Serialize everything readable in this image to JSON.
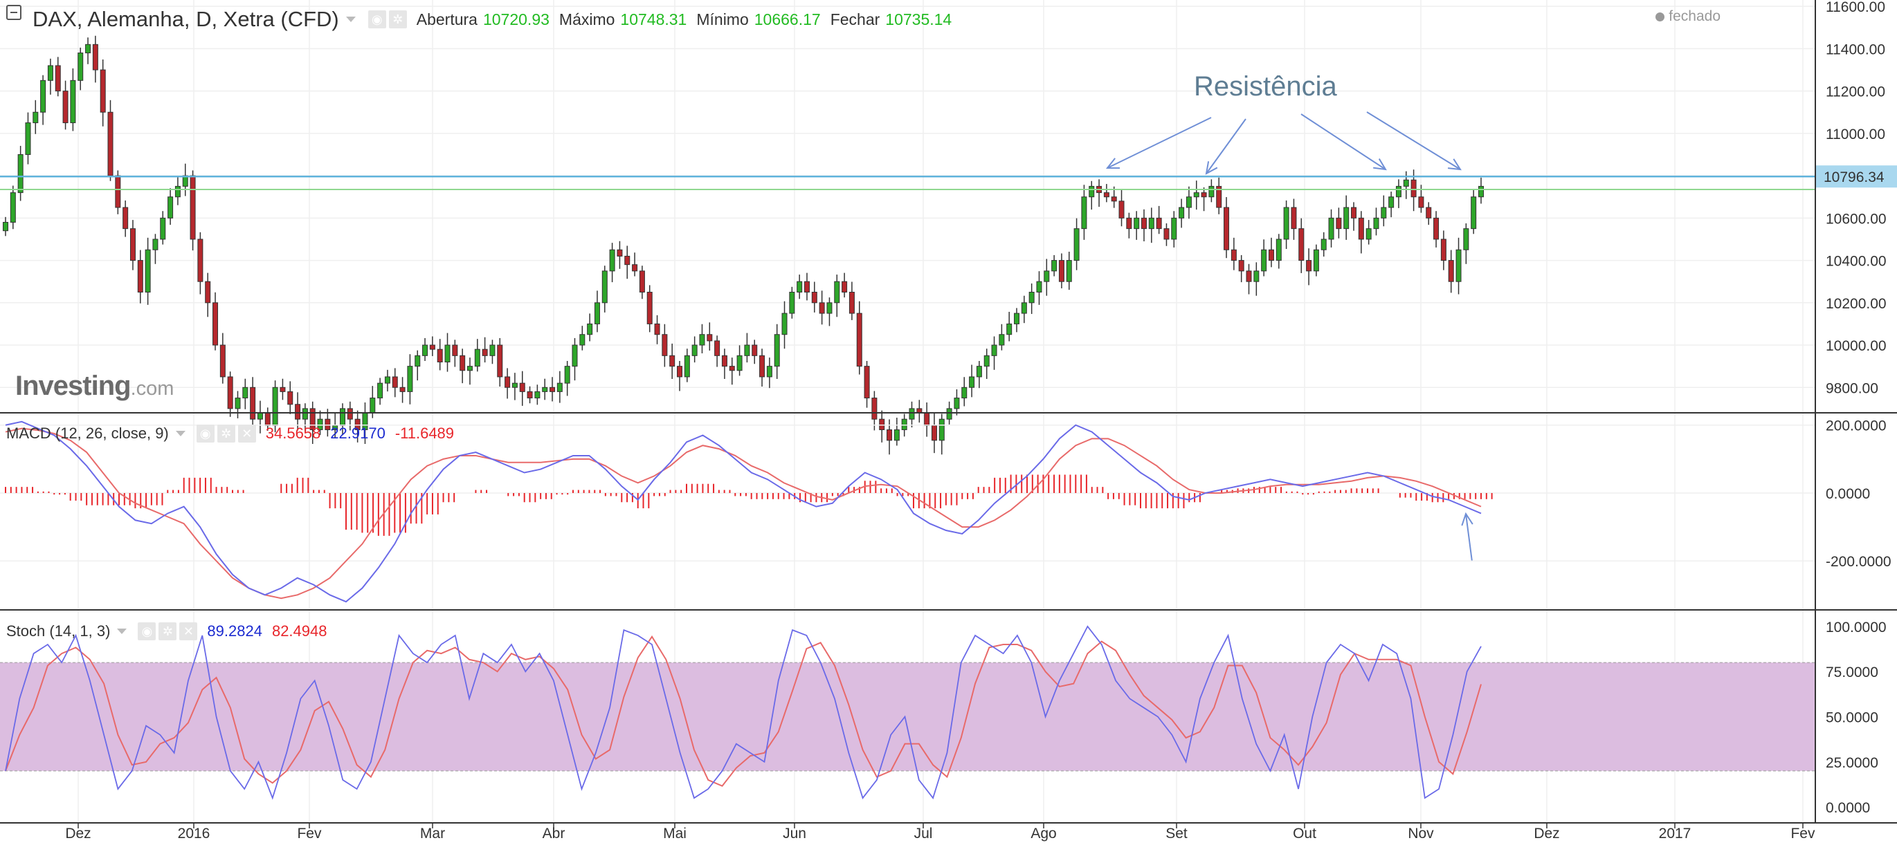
{
  "header": {
    "title": "DAX, Alemanha, D, Xetra (CFD)",
    "ohlc": [
      {
        "label": "Abertura",
        "value": "10720.93"
      },
      {
        "label": "Máximo",
        "value": "10748.31"
      },
      {
        "label": "Mínimo",
        "value": "10666.17"
      },
      {
        "label": "Fechar",
        "value": "10735.14"
      }
    ],
    "status": "fechado"
  },
  "logo": {
    "name": "Investing",
    "suffix": ".com"
  },
  "annotation": "Resistência",
  "macd": {
    "title": "MACD (12, 26, close, 9)",
    "values": [
      {
        "text": "34.5658",
        "color": "#e8262b"
      },
      {
        "text": "22.9170",
        "color": "#1c2bd0"
      },
      {
        "text": "-11.6489",
        "color": "#e8262b"
      }
    ]
  },
  "stoch": {
    "title": "Stoch (14, 1, 3)",
    "values": [
      {
        "text": "89.2824",
        "color": "#1c2bd0"
      },
      {
        "text": "82.4948",
        "color": "#e8262b"
      }
    ]
  },
  "colors": {
    "up": "#2ea62a",
    "down": "#b5282d",
    "macd_line": "#6a6ae8",
    "signal_line": "#e86a6a",
    "histogram": "#e8262b",
    "stoch_k": "#6a6ae8",
    "stoch_d": "#e86a6a",
    "stoch_band": "#dcbde0",
    "resistance_line": "#5fb3dc",
    "close_line": "#8fd88f",
    "annotation": "#5e7d93"
  },
  "chart_data": [
    {
      "type": "candlestick",
      "title": "DAX, Alemanha, D, Xetra (CFD)",
      "x_ticks": [
        "Dez",
        "2016",
        "Fev",
        "Mar",
        "Abr",
        "Mai",
        "Jun",
        "Jul",
        "Ago",
        "Set",
        "Out",
        "Nov",
        "Dez",
        "2017",
        "Fev"
      ],
      "y_ticks": [
        "11600.00",
        "11400.00",
        "11200.00",
        "11000.00",
        "10800.00",
        "10600.00",
        "10400.00",
        "10200.00",
        "10000.00",
        "9800.00"
      ],
      "ylim": [
        9680,
        11630
      ],
      "last_price_label": "10796.34",
      "resistance_level": 10796.34,
      "close_level": 10735.14,
      "closes": [
        10580,
        10720,
        10900,
        11050,
        11100,
        11250,
        11320,
        11200,
        11050,
        11250,
        11380,
        11420,
        11300,
        11100,
        10800,
        10650,
        10550,
        10400,
        10250,
        10450,
        10500,
        10600,
        10700,
        10750,
        10800,
        10500,
        10300,
        10200,
        10000,
        9850,
        9700,
        9750,
        9800,
        9650,
        9680,
        9620,
        9800,
        9780,
        9720,
        9650,
        9700,
        9600,
        9650,
        9600,
        9620,
        9700,
        9650,
        9600,
        9680,
        9750,
        9820,
        9850,
        9800,
        9780,
        9900,
        9950,
        10000,
        9980,
        9920,
        10000,
        9950,
        9880,
        9900,
        9980,
        9950,
        10000,
        9850,
        9800,
        9820,
        9780,
        9750,
        9780,
        9800,
        9780,
        9820,
        9900,
        10000,
        10050,
        10100,
        10200,
        10350,
        10450,
        10420,
        10380,
        10350,
        10250,
        10100,
        10050,
        9950,
        9900,
        9850,
        9950,
        10000,
        10050,
        10020,
        9950,
        9900,
        9880,
        9950,
        10000,
        9950,
        9850,
        9900,
        10050,
        10150,
        10250,
        10300,
        10250,
        10200,
        10150,
        10200,
        10300,
        10250,
        10150,
        9900,
        9750,
        9650,
        9600,
        9550,
        9600,
        9650,
        9700,
        9680,
        9620,
        9550,
        9650,
        9700,
        9750,
        9800,
        9850,
        9900,
        9950,
        10000,
        10050,
        10100,
        10150,
        10200,
        10250,
        10300,
        10350,
        10400,
        10300,
        10400,
        10550,
        10700,
        10750,
        10720,
        10700,
        10680,
        10600,
        10550,
        10600,
        10550,
        10600,
        10550,
        10500,
        10600,
        10650,
        10700,
        10720,
        10700,
        10750,
        10650,
        10450,
        10400,
        10350,
        10300,
        10350,
        10450,
        10400,
        10500,
        10650,
        10550,
        10400,
        10350,
        10450,
        10500,
        10600,
        10550,
        10650,
        10600,
        10500,
        10550,
        10600,
        10650,
        10700,
        10750,
        10780,
        10700,
        10650,
        10600,
        10500,
        10400,
        10300,
        10450,
        10550,
        10700,
        10750
      ]
    },
    {
      "type": "line",
      "title": "MACD (12, 26, close, 9)",
      "y_ticks": [
        "200.0000",
        "0.0000",
        "-200.0000"
      ],
      "ylim": [
        -340,
        230
      ],
      "macd": [
        200,
        210,
        190,
        170,
        130,
        80,
        20,
        -40,
        -80,
        -90,
        -60,
        -40,
        -100,
        -180,
        -240,
        -280,
        -300,
        -280,
        -250,
        -270,
        -300,
        -320,
        -280,
        -220,
        -150,
        -60,
        10,
        70,
        110,
        120,
        100,
        80,
        60,
        70,
        90,
        110,
        110,
        70,
        20,
        -20,
        40,
        90,
        150,
        170,
        140,
        100,
        60,
        40,
        10,
        -20,
        -40,
        -30,
        20,
        60,
        40,
        10,
        -60,
        -90,
        -110,
        -120,
        -80,
        -30,
        10,
        50,
        100,
        160,
        200,
        180,
        140,
        100,
        60,
        30,
        -10,
        -20,
        0,
        10,
        20,
        30,
        40,
        30,
        20,
        30,
        40,
        50,
        60,
        50,
        30,
        10,
        -10,
        -20,
        -40,
        -60
      ],
      "signal": [
        180,
        190,
        185,
        175,
        155,
        120,
        60,
        0,
        -30,
        -50,
        -70,
        -90,
        -150,
        -200,
        -250,
        -280,
        -300,
        -310,
        -300,
        -280,
        -250,
        -200,
        -150,
        -80,
        -20,
        40,
        80,
        100,
        110,
        110,
        100,
        90,
        90,
        90,
        95,
        100,
        100,
        80,
        50,
        30,
        50,
        80,
        120,
        140,
        130,
        110,
        80,
        60,
        30,
        10,
        -10,
        -20,
        0,
        20,
        25,
        20,
        -10,
        -40,
        -70,
        -100,
        -100,
        -80,
        -50,
        -10,
        40,
        100,
        140,
        160,
        160,
        140,
        110,
        80,
        40,
        10,
        0,
        0,
        5,
        10,
        20,
        25,
        25,
        25,
        30,
        35,
        45,
        50,
        45,
        35,
        20,
        0,
        -20,
        -40
      ]
    },
    {
      "type": "line",
      "title": "Stoch (14, 1, 3)",
      "y_ticks": [
        "100.0000",
        "75.0000",
        "50.0000",
        "25.0000",
        "0.0000"
      ],
      "ylim": [
        -8,
        108
      ],
      "band": [
        20,
        80
      ],
      "k": [
        20,
        60,
        85,
        90,
        80,
        95,
        70,
        40,
        10,
        20,
        45,
        40,
        30,
        70,
        95,
        50,
        20,
        10,
        25,
        5,
        30,
        60,
        70,
        45,
        15,
        10,
        25,
        60,
        95,
        85,
        80,
        90,
        95,
        60,
        85,
        80,
        90,
        75,
        85,
        70,
        40,
        10,
        30,
        55,
        98,
        95,
        90,
        60,
        30,
        5,
        10,
        20,
        35,
        30,
        25,
        70,
        98,
        95,
        80,
        60,
        30,
        5,
        15,
        40,
        50,
        15,
        5,
        30,
        80,
        95,
        90,
        85,
        95,
        80,
        50,
        70,
        85,
        100,
        90,
        70,
        60,
        55,
        50,
        40,
        25,
        60,
        80,
        95,
        60,
        35,
        20,
        40,
        10,
        50,
        80,
        90,
        85,
        70,
        90,
        85,
        60,
        5,
        10,
        40,
        75,
        89
      ]
    }
  ]
}
